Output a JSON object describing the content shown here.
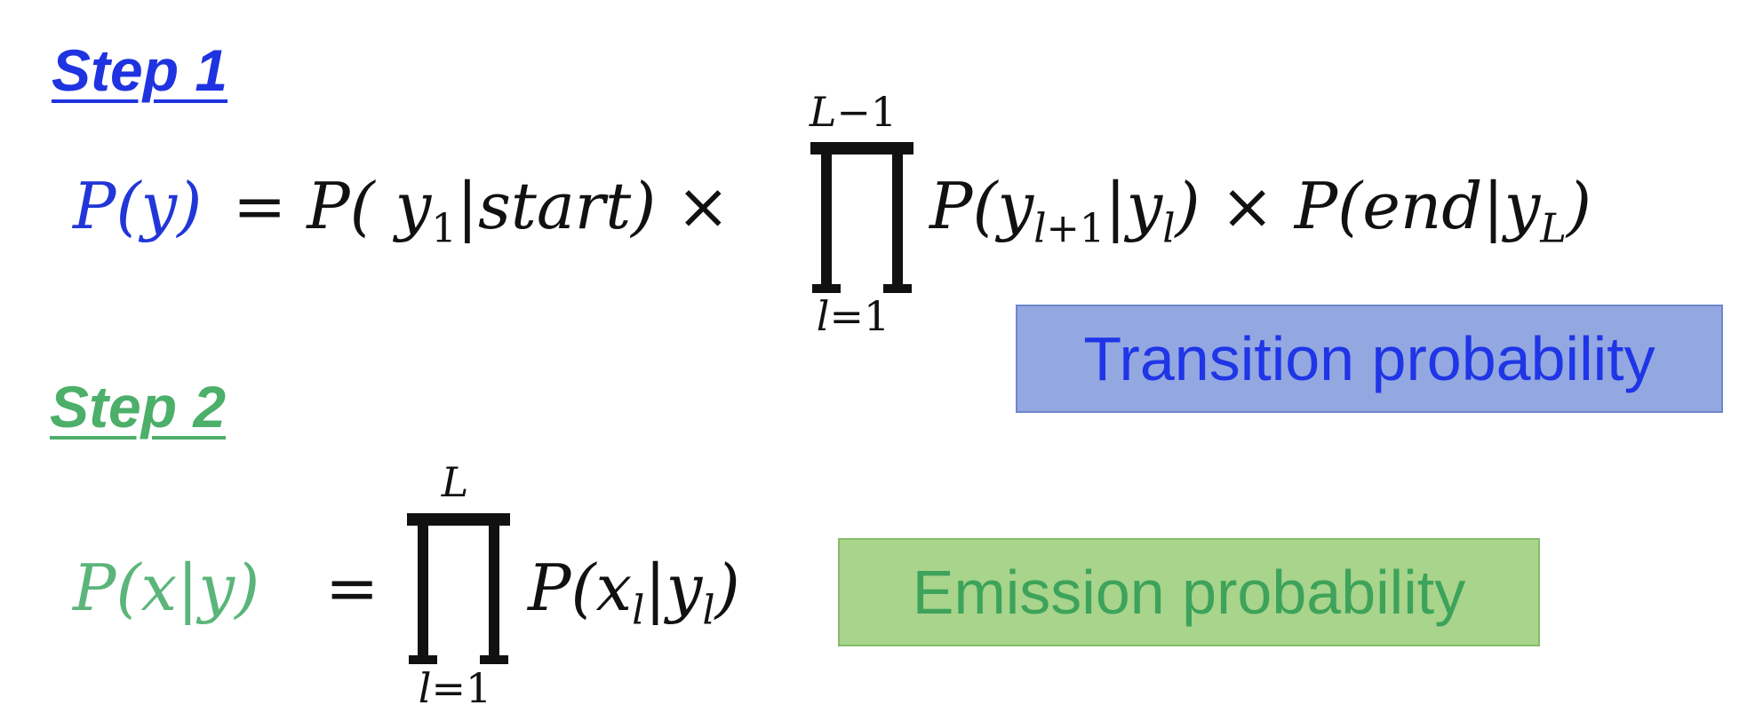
{
  "step1": {
    "heading": "Step 1",
    "formula": {
      "lhs": "P(y)",
      "mid": "= P( y1|start) ×",
      "product_upper": "L−1",
      "product_lower": "l=1",
      "rhs": "P(yl+1|yl) × P(end|yL)"
    },
    "label": "Transition probability"
  },
  "step2": {
    "heading": "Step 2",
    "formula": {
      "lhs": "P(x|y)",
      "eq": "=",
      "product_upper": "L",
      "product_lower": "l=1",
      "rhs": "P(xl|yl)"
    },
    "label": "Emission probability"
  },
  "colors": {
    "step1_accent": "#1f33e0",
    "step2_accent": "#4caf6a",
    "transition_box_bg": "#93a8e0",
    "emission_box_bg": "#a8d48c"
  }
}
